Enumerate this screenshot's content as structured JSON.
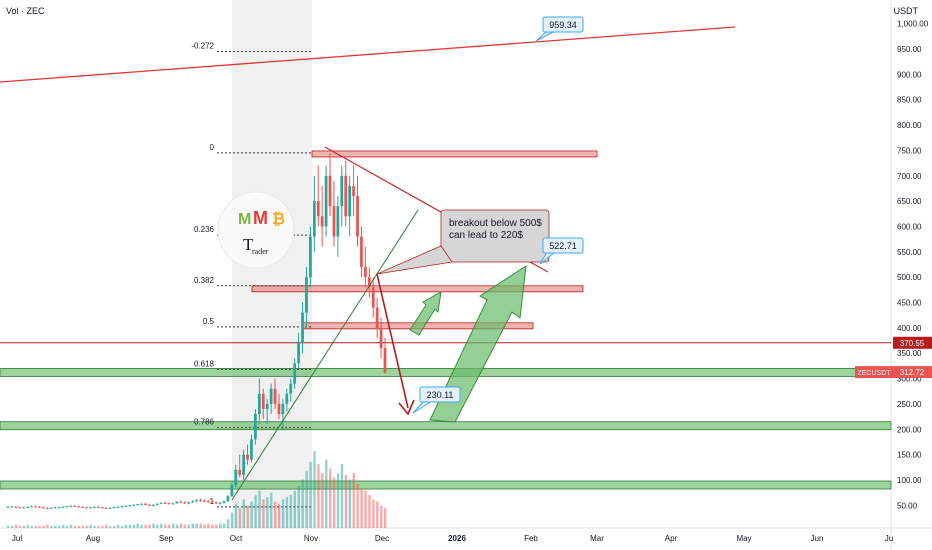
{
  "header": {
    "volume_label": "Vol · ZEC",
    "currency_label": "USDT"
  },
  "chart_data": {
    "type": "candlestick",
    "symbol_tag": "ZECUSDT",
    "y_axis_ticks": [
      50,
      100,
      150,
      200,
      250,
      300,
      350,
      400,
      450,
      500,
      550,
      600,
      650,
      700,
      750,
      800,
      850,
      900,
      950,
      1000
    ],
    "y_tick_labels": [
      "50.00",
      "100.00",
      "150.00",
      "200.00",
      "250.00",
      "300.00",
      "350.00",
      "400.00",
      "450.00",
      "500.00",
      "550.00",
      "600.00",
      "650.00",
      "700.00",
      "750.00",
      "800.00",
      "850.00",
      "900.00",
      "950.00",
      "1,000.00"
    ],
    "x_axis_labels": [
      "Jul",
      "Aug",
      "Sep",
      "Oct",
      "Nov",
      "Dec",
      "2026",
      "Feb",
      "Mar",
      "Apr",
      "May",
      "Jun",
      "Ju"
    ],
    "price_tags": {
      "last_price": "312.72",
      "marked_level": "370.55"
    },
    "fib_levels": [
      {
        "label": "-0.272",
        "price": 945
      },
      {
        "label": "0",
        "price": 745
      },
      {
        "label": "0.236",
        "price": 583
      },
      {
        "label": "0.382",
        "price": 483
      },
      {
        "label": "0.5",
        "price": 402
      },
      {
        "label": "0.618",
        "price": 318
      },
      {
        "label": "0.786",
        "price": 203
      },
      {
        "label": "1",
        "price": 47
      }
    ],
    "horizontal_levels": [
      {
        "price": 743,
        "color": "#e57373",
        "kind": "resistance"
      },
      {
        "price": 477,
        "color": "#e57373",
        "kind": "resistance"
      },
      {
        "price": 404,
        "color": "#e57373",
        "kind": "resistance"
      },
      {
        "price": 370.55,
        "color": "#b71c1c",
        "kind": "marked"
      },
      {
        "price": 312,
        "color": "#66bb6a",
        "kind": "support"
      },
      {
        "price": 207,
        "color": "#66bb6a",
        "kind": "support"
      },
      {
        "price": 90,
        "color": "#66bb6a",
        "kind": "support"
      }
    ],
    "callouts": [
      {
        "text": "959.34"
      },
      {
        "text": "522.71"
      },
      {
        "text": "230.11"
      }
    ],
    "annotation": {
      "line1": "breakout below 500$",
      "line2": "can lead to 220$"
    },
    "candles": [
      [
        47,
        48,
        46,
        47
      ],
      [
        47,
        49,
        46,
        48
      ],
      [
        48,
        48,
        45,
        46
      ],
      [
        46,
        47,
        44,
        45
      ],
      [
        45,
        47,
        44,
        46
      ],
      [
        46,
        48,
        45,
        47
      ],
      [
        47,
        49,
        46,
        48
      ],
      [
        48,
        49,
        46,
        47
      ],
      [
        47,
        48,
        45,
        46
      ],
      [
        46,
        47,
        44,
        45
      ],
      [
        45,
        46,
        43,
        44
      ],
      [
        44,
        46,
        43,
        45
      ],
      [
        45,
        47,
        44,
        46
      ],
      [
        46,
        47,
        45,
        46
      ],
      [
        46,
        48,
        45,
        47
      ],
      [
        47,
        49,
        46,
        48
      ],
      [
        48,
        50,
        47,
        49
      ],
      [
        49,
        50,
        47,
        48
      ],
      [
        48,
        49,
        46,
        47
      ],
      [
        47,
        48,
        45,
        46
      ],
      [
        46,
        47,
        44,
        45
      ],
      [
        45,
        47,
        44,
        46
      ],
      [
        46,
        48,
        45,
        47
      ],
      [
        47,
        48,
        45,
        46
      ],
      [
        46,
        47,
        44,
        45
      ],
      [
        45,
        46,
        43,
        44
      ],
      [
        44,
        46,
        43,
        45
      ],
      [
        45,
        47,
        44,
        46
      ],
      [
        46,
        48,
        45,
        47
      ],
      [
        47,
        49,
        46,
        48
      ],
      [
        48,
        50,
        47,
        49
      ],
      [
        49,
        51,
        48,
        50
      ],
      [
        50,
        52,
        49,
        51
      ],
      [
        51,
        53,
        50,
        52
      ],
      [
        52,
        54,
        51,
        53
      ],
      [
        53,
        55,
        50,
        51
      ],
      [
        51,
        53,
        49,
        50
      ],
      [
        50,
        52,
        48,
        51
      ],
      [
        51,
        54,
        50,
        53
      ],
      [
        53,
        56,
        52,
        55
      ],
      [
        55,
        57,
        53,
        54
      ],
      [
        54,
        56,
        52,
        53
      ],
      [
        53,
        55,
        51,
        54
      ],
      [
        54,
        58,
        53,
        57
      ],
      [
        57,
        60,
        55,
        56
      ],
      [
        56,
        58,
        53,
        54
      ],
      [
        54,
        57,
        52,
        56
      ],
      [
        56,
        60,
        55,
        58
      ],
      [
        58,
        62,
        56,
        60
      ],
      [
        60,
        63,
        57,
        59
      ],
      [
        59,
        62,
        56,
        58
      ],
      [
        58,
        61,
        55,
        57
      ],
      [
        57,
        60,
        54,
        56
      ],
      [
        56,
        58,
        52,
        54
      ],
      [
        54,
        57,
        51,
        55
      ],
      [
        55,
        59,
        53,
        58
      ],
      [
        58,
        70,
        57,
        68
      ],
      [
        68,
        95,
        66,
        90
      ],
      [
        90,
        130,
        85,
        120
      ],
      [
        120,
        150,
        105,
        110
      ],
      [
        110,
        160,
        100,
        150
      ],
      [
        150,
        170,
        130,
        140
      ],
      [
        140,
        190,
        135,
        180
      ],
      [
        180,
        240,
        170,
        230
      ],
      [
        230,
        300,
        210,
        270
      ],
      [
        270,
        280,
        220,
        240
      ],
      [
        240,
        260,
        210,
        250
      ],
      [
        250,
        290,
        230,
        280
      ],
      [
        280,
        300,
        240,
        250
      ],
      [
        250,
        270,
        220,
        230
      ],
      [
        230,
        260,
        200,
        250
      ],
      [
        250,
        280,
        235,
        270
      ],
      [
        270,
        300,
        255,
        290
      ],
      [
        290,
        340,
        280,
        330
      ],
      [
        330,
        390,
        320,
        370
      ],
      [
        370,
        450,
        350,
        430
      ],
      [
        430,
        520,
        400,
        500
      ],
      [
        500,
        600,
        480,
        580
      ],
      [
        580,
        700,
        550,
        650
      ],
      [
        650,
        720,
        600,
        620
      ],
      [
        620,
        680,
        560,
        600
      ],
      [
        600,
        720,
        580,
        700
      ],
      [
        700,
        745,
        620,
        640
      ],
      [
        640,
        690,
        560,
        580
      ],
      [
        580,
        660,
        540,
        640
      ],
      [
        640,
        720,
        600,
        700
      ],
      [
        700,
        730,
        600,
        620
      ],
      [
        620,
        700,
        580,
        680
      ],
      [
        680,
        720,
        620,
        660
      ],
      [
        660,
        700,
        560,
        580
      ],
      [
        580,
        600,
        500,
        520
      ],
      [
        520,
        560,
        480,
        500
      ],
      [
        500,
        520,
        460,
        480
      ],
      [
        480,
        500,
        420,
        440
      ],
      [
        440,
        460,
        380,
        400
      ],
      [
        400,
        420,
        340,
        360
      ],
      [
        360,
        380,
        310,
        312
      ]
    ],
    "volumes": [
      2,
      2,
      3,
      2,
      2,
      3,
      2,
      2,
      2,
      2,
      3,
      2,
      2,
      2,
      3,
      2,
      3,
      2,
      2,
      2,
      2,
      3,
      2,
      2,
      2,
      3,
      2,
      2,
      3,
      2,
      3,
      3,
      3,
      4,
      3,
      3,
      3,
      4,
      3,
      4,
      3,
      3,
      4,
      3,
      4,
      3,
      3,
      4,
      4,
      4,
      3,
      4,
      3,
      3,
      4,
      4,
      8,
      14,
      22,
      18,
      26,
      20,
      24,
      30,
      34,
      26,
      28,
      32,
      24,
      22,
      26,
      28,
      30,
      34,
      38,
      44,
      52,
      60,
      70,
      58,
      50,
      62,
      54,
      46,
      50,
      58,
      48,
      44,
      50,
      40,
      36,
      34,
      30,
      26,
      24,
      20,
      18
    ],
    "x_range_months": [
      "Jul",
      "Jun"
    ],
    "ylim": [
      20,
      1010
    ]
  }
}
